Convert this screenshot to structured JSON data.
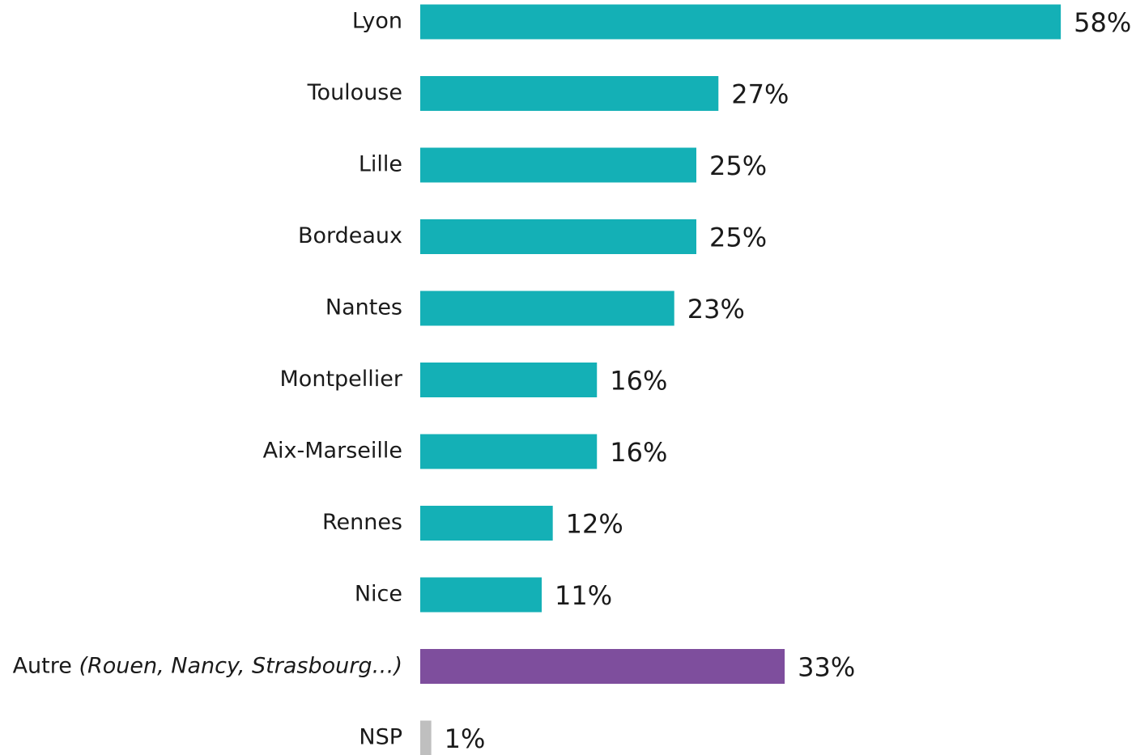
{
  "chart_data": {
    "type": "bar",
    "orientation": "horizontal",
    "categories": [
      "Lyon",
      "Toulouse",
      "Lille",
      "Bordeaux",
      "Nantes",
      "Montpellier",
      "Aix-Marseille",
      "Rennes",
      "Nice",
      "Autre (Rouen, Nancy, Strasbourg…)",
      "NSP"
    ],
    "values": [
      58,
      27,
      25,
      25,
      23,
      16,
      16,
      12,
      11,
      33,
      1
    ],
    "value_labels": [
      "58%",
      "27%",
      "25%",
      "25%",
      "23%",
      "16%",
      "16%",
      "12%",
      "11%",
      "33%",
      "1%"
    ],
    "colors": [
      "#14b0b6",
      "#14b0b6",
      "#14b0b6",
      "#14b0b6",
      "#14b0b6",
      "#14b0b6",
      "#14b0b6",
      "#14b0b6",
      "#14b0b6",
      "#7e4e9d",
      "#bfbfbf"
    ]
  }
}
